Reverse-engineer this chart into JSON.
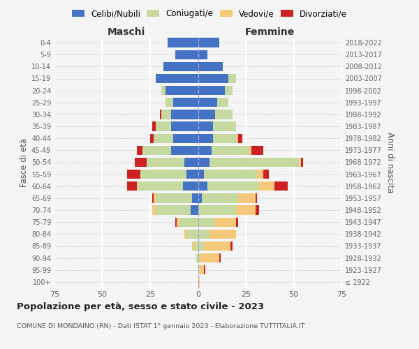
{
  "age_groups": [
    "100+",
    "95-99",
    "90-94",
    "85-89",
    "80-84",
    "75-79",
    "70-74",
    "65-69",
    "60-64",
    "55-59",
    "50-54",
    "45-49",
    "40-44",
    "35-39",
    "30-34",
    "25-29",
    "20-24",
    "15-19",
    "10-14",
    "5-9",
    "0-4"
  ],
  "birth_years": [
    "≤ 1922",
    "1923-1927",
    "1928-1932",
    "1933-1937",
    "1938-1942",
    "1943-1947",
    "1948-1952",
    "1953-1957",
    "1958-1962",
    "1963-1967",
    "1968-1972",
    "1973-1977",
    "1978-1982",
    "1983-1987",
    "1988-1992",
    "1993-1997",
    "1998-2002",
    "2003-2007",
    "2008-2012",
    "2013-2017",
    "2018-2022"
  ],
  "colors": {
    "celibi": "#4472c4",
    "coniugati": "#c5d9a0",
    "vedovi": "#f5c87a",
    "divorziati": "#cc2222"
  },
  "males": {
    "celibi": [
      0,
      0,
      0,
      0,
      0,
      0,
      4,
      3,
      8,
      6,
      7,
      14,
      13,
      14,
      14,
      13,
      17,
      22,
      18,
      12,
      16
    ],
    "coniugati": [
      0,
      0,
      1,
      2,
      6,
      10,
      18,
      19,
      24,
      24,
      20,
      15,
      10,
      8,
      5,
      4,
      2,
      0,
      0,
      0,
      0
    ],
    "vedovi": [
      0,
      0,
      0,
      1,
      1,
      1,
      2,
      1,
      0,
      0,
      0,
      0,
      0,
      0,
      0,
      0,
      0,
      0,
      0,
      0,
      0
    ],
    "divorziati": [
      0,
      0,
      0,
      0,
      0,
      1,
      0,
      1,
      5,
      7,
      6,
      3,
      2,
      2,
      1,
      0,
      0,
      0,
      0,
      0,
      0
    ]
  },
  "females": {
    "nubili": [
      0,
      0,
      0,
      0,
      0,
      0,
      0,
      2,
      5,
      3,
      6,
      7,
      8,
      8,
      9,
      10,
      14,
      16,
      13,
      5,
      11
    ],
    "coniugati": [
      0,
      1,
      1,
      3,
      6,
      9,
      20,
      19,
      27,
      28,
      47,
      20,
      12,
      12,
      9,
      6,
      4,
      4,
      0,
      0,
      0
    ],
    "vedovi": [
      1,
      2,
      10,
      14,
      14,
      11,
      10,
      9,
      8,
      3,
      1,
      1,
      1,
      0,
      0,
      0,
      0,
      0,
      0,
      0,
      0
    ],
    "divorziati": [
      0,
      1,
      1,
      1,
      0,
      1,
      2,
      1,
      7,
      3,
      1,
      6,
      2,
      0,
      0,
      0,
      0,
      0,
      0,
      0,
      0
    ]
  },
  "title": "Popolazione per età, sesso e stato civile - 2023",
  "subtitle": "COMUNE DI MONDAINO (RN) - Dati ISTAT 1° gennaio 2023 - Elaborazione TUTTITALIA.IT",
  "label_maschi": "Maschi",
  "label_femmine": "Femmine",
  "ylabel_left": "Fasce di età",
  "ylabel_right": "Anni di nascita",
  "legend_labels": [
    "Celibi/Nubili",
    "Coniugati/e",
    "Vedovi/e",
    "Divorziati/e"
  ],
  "xlim": 75,
  "background_color": "#f5f5f5"
}
